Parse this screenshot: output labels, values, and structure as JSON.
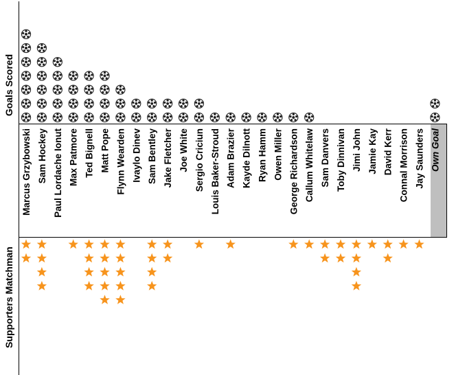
{
  "chart_data": {
    "type": "pictogram",
    "goals_axis_label": "Goals Scored",
    "motm_axis_label": "Supporters Matchman",
    "colors": {
      "star": "#f7941d",
      "ball_fill": "#ffffff",
      "ball_patch": "#222222",
      "own_goal_band": "#bfbfbf"
    },
    "players": [
      {
        "name": "Marcus Grzybowski",
        "goals": 7,
        "motm": 2
      },
      {
        "name": "Sam Hockey",
        "goals": 6,
        "motm": 4
      },
      {
        "name": "Paul Lordache Ionut",
        "goals": 5,
        "motm": 0
      },
      {
        "name": "Max Patmore",
        "goals": 4,
        "motm": 1
      },
      {
        "name": "Ted Bignell",
        "goals": 4,
        "motm": 4
      },
      {
        "name": "Matt Pope",
        "goals": 4,
        "motm": 5
      },
      {
        "name": "Flynn Wearden",
        "goals": 3,
        "motm": 5
      },
      {
        "name": "Ivaylo Dinev",
        "goals": 2,
        "motm": 0
      },
      {
        "name": "Sam Bentley",
        "goals": 2,
        "motm": 4
      },
      {
        "name": "Jake Fletcher",
        "goals": 2,
        "motm": 2
      },
      {
        "name": "Joe White",
        "goals": 2,
        "motm": 0
      },
      {
        "name": "Sergio Criciun",
        "goals": 2,
        "motm": 1
      },
      {
        "name": "Louis Baker-Stroud",
        "goals": 1,
        "motm": 0
      },
      {
        "name": "Adam Brazier",
        "goals": 1,
        "motm": 1
      },
      {
        "name": "Kayde Dilnott",
        "goals": 1,
        "motm": 0
      },
      {
        "name": "Ryan Hamm",
        "goals": 1,
        "motm": 0
      },
      {
        "name": "Owen Miller",
        "goals": 1,
        "motm": 0
      },
      {
        "name": "George Richardson",
        "goals": 1,
        "motm": 1
      },
      {
        "name": "Callum Whitelaw",
        "goals": 1,
        "motm": 1
      },
      {
        "name": "Sam Danvers",
        "goals": 0,
        "motm": 2
      },
      {
        "name": "Toby Dinnivan",
        "goals": 0,
        "motm": 2
      },
      {
        "name": "Jimi John",
        "goals": 0,
        "motm": 4
      },
      {
        "name": "Jamie Kay",
        "goals": 0,
        "motm": 1
      },
      {
        "name": "David Kerr",
        "goals": 0,
        "motm": 2
      },
      {
        "name": "Connal Morrison",
        "goals": 0,
        "motm": 1
      },
      {
        "name": "Jay Saunders",
        "goals": 0,
        "motm": 1
      },
      {
        "name": "Own Goal",
        "goals": 2,
        "motm": 0,
        "own_goal": true
      }
    ]
  }
}
